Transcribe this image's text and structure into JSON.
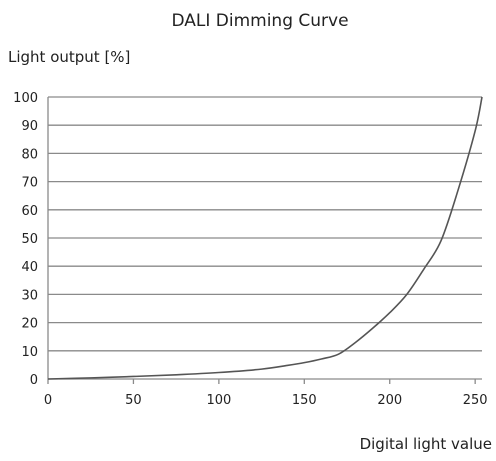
{
  "chart_data": {
    "type": "line",
    "title": "DALI Dimming Curve",
    "ylabel": "Light output [%]",
    "xlabel": "Digital light value",
    "xlim": [
      0,
      254
    ],
    "ylim": [
      0,
      100
    ],
    "xticks": [
      0,
      50,
      100,
      150,
      200,
      250
    ],
    "yticks": [
      0,
      10,
      20,
      30,
      40,
      50,
      60,
      70,
      80,
      90,
      100
    ],
    "grid": "horizontal",
    "series": [
      {
        "color": "#555555",
        "x": [
          0,
          25,
          50,
          75,
          100,
          125,
          140,
          150,
          160,
          170,
          180,
          190,
          200,
          210,
          220,
          230,
          240,
          250,
          254
        ],
        "y": [
          0,
          0.4,
          0.9,
          1.5,
          2.3,
          3.5,
          4.8,
          5.8,
          7.1,
          8.8,
          13,
          18,
          23.5,
          30,
          39,
          49,
          67,
          88,
          100
        ]
      }
    ]
  }
}
